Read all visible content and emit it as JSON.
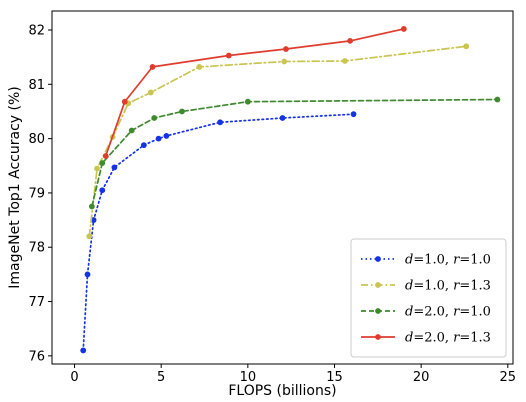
{
  "chart_data": {
    "type": "line",
    "xlabel": "FLOPS (billions)",
    "ylabel": "ImageNet Top1 Accuracy (%)",
    "xlim": [
      -1.3,
      25.3
    ],
    "ylim": [
      75.85,
      82.35
    ],
    "xticks": [
      0,
      5,
      10,
      15,
      20,
      25
    ],
    "yticks": [
      76,
      77,
      78,
      79,
      80,
      81,
      82
    ],
    "grid": false,
    "legend_position": "bottom-right",
    "series": [
      {
        "name": "d=1.0, r=1.0",
        "legend": {
          "d": "1.0",
          "r": "1.0"
        },
        "color": "#1432e6",
        "style": "dotted",
        "x": [
          0.5,
          0.75,
          1.1,
          1.6,
          2.3,
          4.0,
          4.85,
          5.3,
          8.4,
          12.0,
          16.1
        ],
        "y": [
          76.1,
          77.5,
          78.5,
          79.05,
          79.47,
          79.88,
          80.0,
          80.05,
          80.3,
          80.38,
          80.45
        ]
      },
      {
        "name": "d=1.0, r=1.3",
        "legend": {
          "d": "1.0",
          "r": "1.3"
        },
        "color": "#c9c550",
        "style": "dashdot",
        "x": [
          0.85,
          1.3,
          2.2,
          3.1,
          4.4,
          7.2,
          12.1,
          15.6,
          22.6
        ],
        "y": [
          78.2,
          79.45,
          80.03,
          80.65,
          80.85,
          81.32,
          81.42,
          81.43,
          81.7
        ]
      },
      {
        "name": "d=2.0, r=1.0",
        "legend": {
          "d": "2.0",
          "r": "1.0"
        },
        "color": "#3f8a2f",
        "style": "dashed",
        "x": [
          1.0,
          1.6,
          3.3,
          4.6,
          6.2,
          10.0,
          24.4
        ],
        "y": [
          78.75,
          79.55,
          80.15,
          80.38,
          80.5,
          80.68,
          80.72
        ]
      },
      {
        "name": "d=2.0, r=1.3",
        "legend": {
          "d": "2.0",
          "r": "1.3"
        },
        "color": "#e03c2e",
        "style": "solid",
        "x": [
          1.8,
          2.9,
          4.5,
          8.9,
          12.2,
          15.9,
          19.0
        ],
        "y": [
          79.68,
          80.68,
          81.32,
          81.53,
          81.65,
          81.8,
          82.02
        ]
      }
    ]
  }
}
